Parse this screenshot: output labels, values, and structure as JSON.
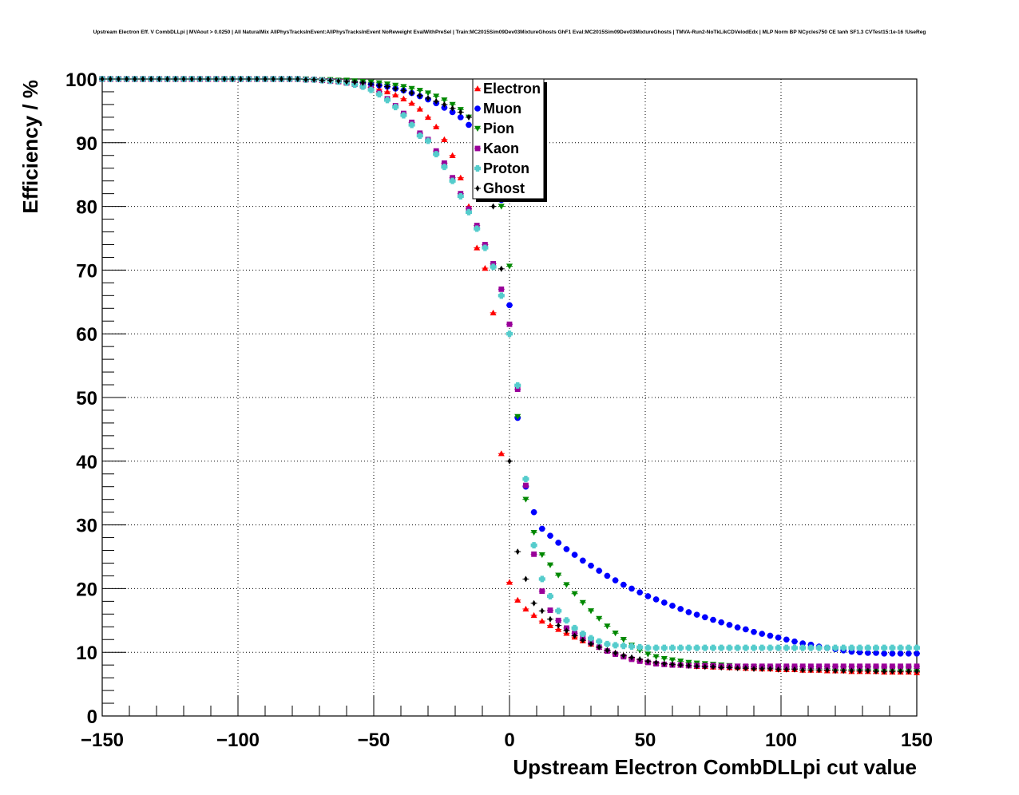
{
  "chart_data": {
    "type": "scatter",
    "title": "Upstream Electron Eff. V CombDLLpi | MVAout > 0.0250 | All NaturalMix AllPhysTracksInEvent:AllPhysTracksInEvent NoReweight EvalWithPreSel | Train:MC2015Sim09Dev03MixtureGhosts GhF1 Eval:MC2015Sim09Dev03MixtureGhosts | TMVA-Run2-NoTkLikCDVelodEdx | MLP Norm BP NCycles750 CE tanh SF1.3 CVTest15:1e-16 !UseReg",
    "xlabel": "Upstream Electron CombDLLpi cut value",
    "ylabel": "Efficiency / %",
    "xlim": [
      -150,
      150
    ],
    "ylim": [
      0,
      100
    ],
    "xticks": [
      -150,
      -100,
      -50,
      0,
      50,
      100,
      150
    ],
    "xtick_labels": [
      "−150",
      "−100",
      "−50",
      "0",
      "50",
      "100",
      "150"
    ],
    "yticks": [
      0,
      10,
      20,
      30,
      40,
      50,
      60,
      70,
      80,
      90,
      100
    ],
    "ytick_labels": [
      "0",
      "10",
      "20",
      "30",
      "40",
      "50",
      "60",
      "70",
      "80",
      "90",
      "100"
    ],
    "grid": true,
    "legend_position": "top-center",
    "x": [
      -150,
      -147,
      -144,
      -141,
      -138,
      -135,
      -132,
      -129,
      -126,
      -123,
      -120,
      -117,
      -114,
      -111,
      -108,
      -105,
      -102,
      -99,
      -96,
      -93,
      -90,
      -87,
      -84,
      -81,
      -78,
      -75,
      -72,
      -69,
      -66,
      -63,
      -60,
      -57,
      -54,
      -51,
      -48,
      -45,
      -42,
      -39,
      -36,
      -33,
      -30,
      -27,
      -24,
      -21,
      -18,
      -15,
      -12,
      -9,
      -6,
      -3,
      0,
      3,
      6,
      9,
      12,
      15,
      18,
      21,
      24,
      27,
      30,
      33,
      36,
      39,
      42,
      45,
      48,
      51,
      54,
      57,
      60,
      63,
      66,
      69,
      72,
      75,
      78,
      81,
      84,
      87,
      90,
      93,
      96,
      99,
      102,
      105,
      108,
      111,
      114,
      117,
      120,
      123,
      126,
      129,
      132,
      135,
      138,
      141,
      144,
      147,
      150
    ],
    "series": [
      {
        "name": "Electron",
        "color": "#ff0000",
        "marker": "triangle-up",
        "values": [
          100,
          100,
          100,
          100,
          100,
          100,
          100,
          100,
          100,
          100,
          100,
          100,
          100,
          100,
          100,
          100,
          100,
          100,
          100,
          100,
          100,
          100,
          100,
          100,
          100,
          99.9,
          99.9,
          99.8,
          99.7,
          99.6,
          99.4,
          99.2,
          99.0,
          98.7,
          98.4,
          98.0,
          97.5,
          96.9,
          96.2,
          95.3,
          94.0,
          92.5,
          90.5,
          88.0,
          84.5,
          80.0,
          73.5,
          70.3,
          63.3,
          41.2,
          21.0,
          18.2,
          16.8,
          15.8,
          14.9,
          14.2,
          13.6,
          13.0,
          12.4,
          11.8,
          11.3,
          10.8,
          10.3,
          9.9,
          9.5,
          9.1,
          8.8,
          8.5,
          8.3,
          8.2,
          8.1,
          8.0,
          7.9,
          7.8,
          7.8,
          7.7,
          7.7,
          7.6,
          7.6,
          7.5,
          7.5,
          7.4,
          7.4,
          7.3,
          7.3,
          7.3,
          7.2,
          7.2,
          7.2,
          7.1,
          7.1,
          7.1,
          7.0,
          7.0,
          7.0,
          7.0,
          6.9,
          6.9,
          6.9,
          6.9,
          6.8
        ]
      },
      {
        "name": "Muon",
        "color": "#0000ff",
        "marker": "circle",
        "values": [
          100,
          100,
          100,
          100,
          100,
          100,
          100,
          100,
          100,
          100,
          100,
          100,
          100,
          100,
          100,
          100,
          100,
          100,
          100,
          100,
          100,
          100,
          100,
          100,
          100,
          99.9,
          99.9,
          99.8,
          99.8,
          99.7,
          99.6,
          99.5,
          99.4,
          99.2,
          99.0,
          98.8,
          98.5,
          98.2,
          97.8,
          97.3,
          96.8,
          96.2,
          95.5,
          94.8,
          94.0,
          92.8,
          91.2,
          89.0,
          85.5,
          81.0,
          64.5,
          46.8,
          36.0,
          32.0,
          29.4,
          28.3,
          27.2,
          26.2,
          25.3,
          24.4,
          23.6,
          22.8,
          22.0,
          21.3,
          20.6,
          20.0,
          19.4,
          18.8,
          18.3,
          17.8,
          17.3,
          16.8,
          16.3,
          15.9,
          15.5,
          15.1,
          14.7,
          14.3,
          13.9,
          13.6,
          13.2,
          12.9,
          12.6,
          12.3,
          12.0,
          11.7,
          11.4,
          11.2,
          10.9,
          10.7,
          10.5,
          10.3,
          10.1,
          10.0,
          9.9,
          9.9,
          9.8,
          9.8,
          9.8,
          9.8,
          9.8
        ]
      },
      {
        "name": "Pion",
        "color": "#008800",
        "marker": "triangle-down",
        "values": [
          100,
          100,
          100,
          100,
          100,
          100,
          100,
          100,
          100,
          100,
          100,
          100,
          100,
          100,
          100,
          100,
          100,
          100,
          100,
          100,
          100,
          100,
          100,
          100,
          100,
          100,
          99.9,
          99.9,
          99.9,
          99.8,
          99.8,
          99.7,
          99.6,
          99.5,
          99.4,
          99.2,
          99.0,
          98.8,
          98.5,
          98.2,
          97.8,
          97.3,
          96.7,
          96.0,
          95.2,
          94.0,
          92.5,
          90.5,
          85.0,
          80.0,
          70.6,
          47.0,
          34.0,
          28.8,
          25.3,
          23.7,
          22.1,
          20.6,
          19.2,
          17.8,
          16.5,
          15.3,
          14.1,
          13.0,
          12.0,
          11.1,
          10.3,
          9.7,
          9.3,
          9.0,
          8.8,
          8.6,
          8.4,
          8.3,
          8.2,
          8.1,
          8.0,
          7.9,
          7.8,
          7.7,
          7.7,
          7.6,
          7.6,
          7.5,
          7.5,
          7.5,
          7.4,
          7.4,
          7.4,
          7.4,
          7.3,
          7.3,
          7.3,
          7.3,
          7.3,
          7.2,
          7.2,
          7.2,
          7.2,
          7.2,
          7.1
        ]
      },
      {
        "name": "Kaon",
        "color": "#990099",
        "marker": "square",
        "values": [
          100,
          100,
          100,
          100,
          100,
          100,
          100,
          100,
          100,
          100,
          100,
          100,
          100,
          100,
          100,
          100,
          100,
          100,
          100,
          100,
          100,
          100,
          100,
          100,
          100,
          99.9,
          99.9,
          99.8,
          99.7,
          99.6,
          99.4,
          99.2,
          98.9,
          98.5,
          97.8,
          96.9,
          95.8,
          94.6,
          93.2,
          91.5,
          90.5,
          88.7,
          86.8,
          84.5,
          82.0,
          79.6,
          77.0,
          74.0,
          71.0,
          67.0,
          61.5,
          51.3,
          36.2,
          25.4,
          19.6,
          16.6,
          15.0,
          13.8,
          13.0,
          12.2,
          11.5,
          10.8,
          10.2,
          9.7,
          9.3,
          8.9,
          8.6,
          8.4,
          8.2,
          8.1,
          8.0,
          8.0,
          7.9,
          7.9,
          7.9,
          7.9,
          7.8,
          7.8,
          7.8,
          7.8,
          7.8,
          7.8,
          7.8,
          7.8,
          7.8,
          7.8,
          7.8,
          7.8,
          7.8,
          7.8,
          7.8,
          7.8,
          7.8,
          7.8,
          7.8,
          7.8,
          7.8,
          7.8,
          7.8,
          7.8,
          7.8
        ]
      },
      {
        "name": "Proton",
        "color": "#55cccc",
        "marker": "cross",
        "values": [
          100,
          100,
          100,
          100,
          100,
          100,
          100,
          100,
          100,
          100,
          100,
          100,
          100,
          100,
          100,
          100,
          100,
          100,
          100,
          100,
          100,
          100,
          100,
          100,
          100,
          99.9,
          99.9,
          99.8,
          99.7,
          99.6,
          99.4,
          99.1,
          98.8,
          98.3,
          97.6,
          96.7,
          95.6,
          94.3,
          92.8,
          91.1,
          90.3,
          88.2,
          86.2,
          84.0,
          81.6,
          79.1,
          76.5,
          73.5,
          70.5,
          66.0,
          60.0,
          51.9,
          37.2,
          26.8,
          21.5,
          18.8,
          16.5,
          15.0,
          13.8,
          12.9,
          12.2,
          11.7,
          11.3,
          11.1,
          11.0,
          10.9,
          10.8,
          10.7,
          10.7,
          10.7,
          10.7,
          10.7,
          10.7,
          10.7,
          10.7,
          10.7,
          10.7,
          10.7,
          10.7,
          10.7,
          10.7,
          10.7,
          10.7,
          10.7,
          10.7,
          10.7,
          10.7,
          10.7,
          10.7,
          10.7,
          10.7,
          10.7,
          10.7,
          10.7,
          10.7,
          10.7,
          10.7,
          10.7,
          10.7,
          10.7,
          10.7
        ]
      },
      {
        "name": "Ghost",
        "color": "#000000",
        "marker": "diamond",
        "values": [
          100,
          100,
          100,
          100,
          100,
          100,
          100,
          100,
          100,
          100,
          100,
          100,
          100,
          100,
          100,
          100,
          100,
          100,
          100,
          100,
          100,
          100,
          100,
          100,
          100,
          99.9,
          99.9,
          99.8,
          99.8,
          99.7,
          99.6,
          99.5,
          99.4,
          99.2,
          99.0,
          98.8,
          98.5,
          98.2,
          97.8,
          97.4,
          97.0,
          96.5,
          96.0,
          95.4,
          94.8,
          94.0,
          91.5,
          88.5,
          80.0,
          70.2,
          40.0,
          25.8,
          21.5,
          17.7,
          16.5,
          15.2,
          14.2,
          13.4,
          12.6,
          11.9,
          11.3,
          10.8,
          10.3,
          9.9,
          9.5,
          9.2,
          8.9,
          8.6,
          8.4,
          8.2,
          8.1,
          8.0,
          7.9,
          7.8,
          7.7,
          7.7,
          7.6,
          7.6,
          7.5,
          7.5,
          7.4,
          7.4,
          7.4,
          7.3,
          7.3,
          7.3,
          7.2,
          7.2,
          7.2,
          7.2,
          7.1,
          7.1,
          7.1,
          7.1,
          7.1,
          7.0,
          7.0,
          7.0,
          7.0,
          7.0,
          7.0
        ]
      }
    ]
  }
}
